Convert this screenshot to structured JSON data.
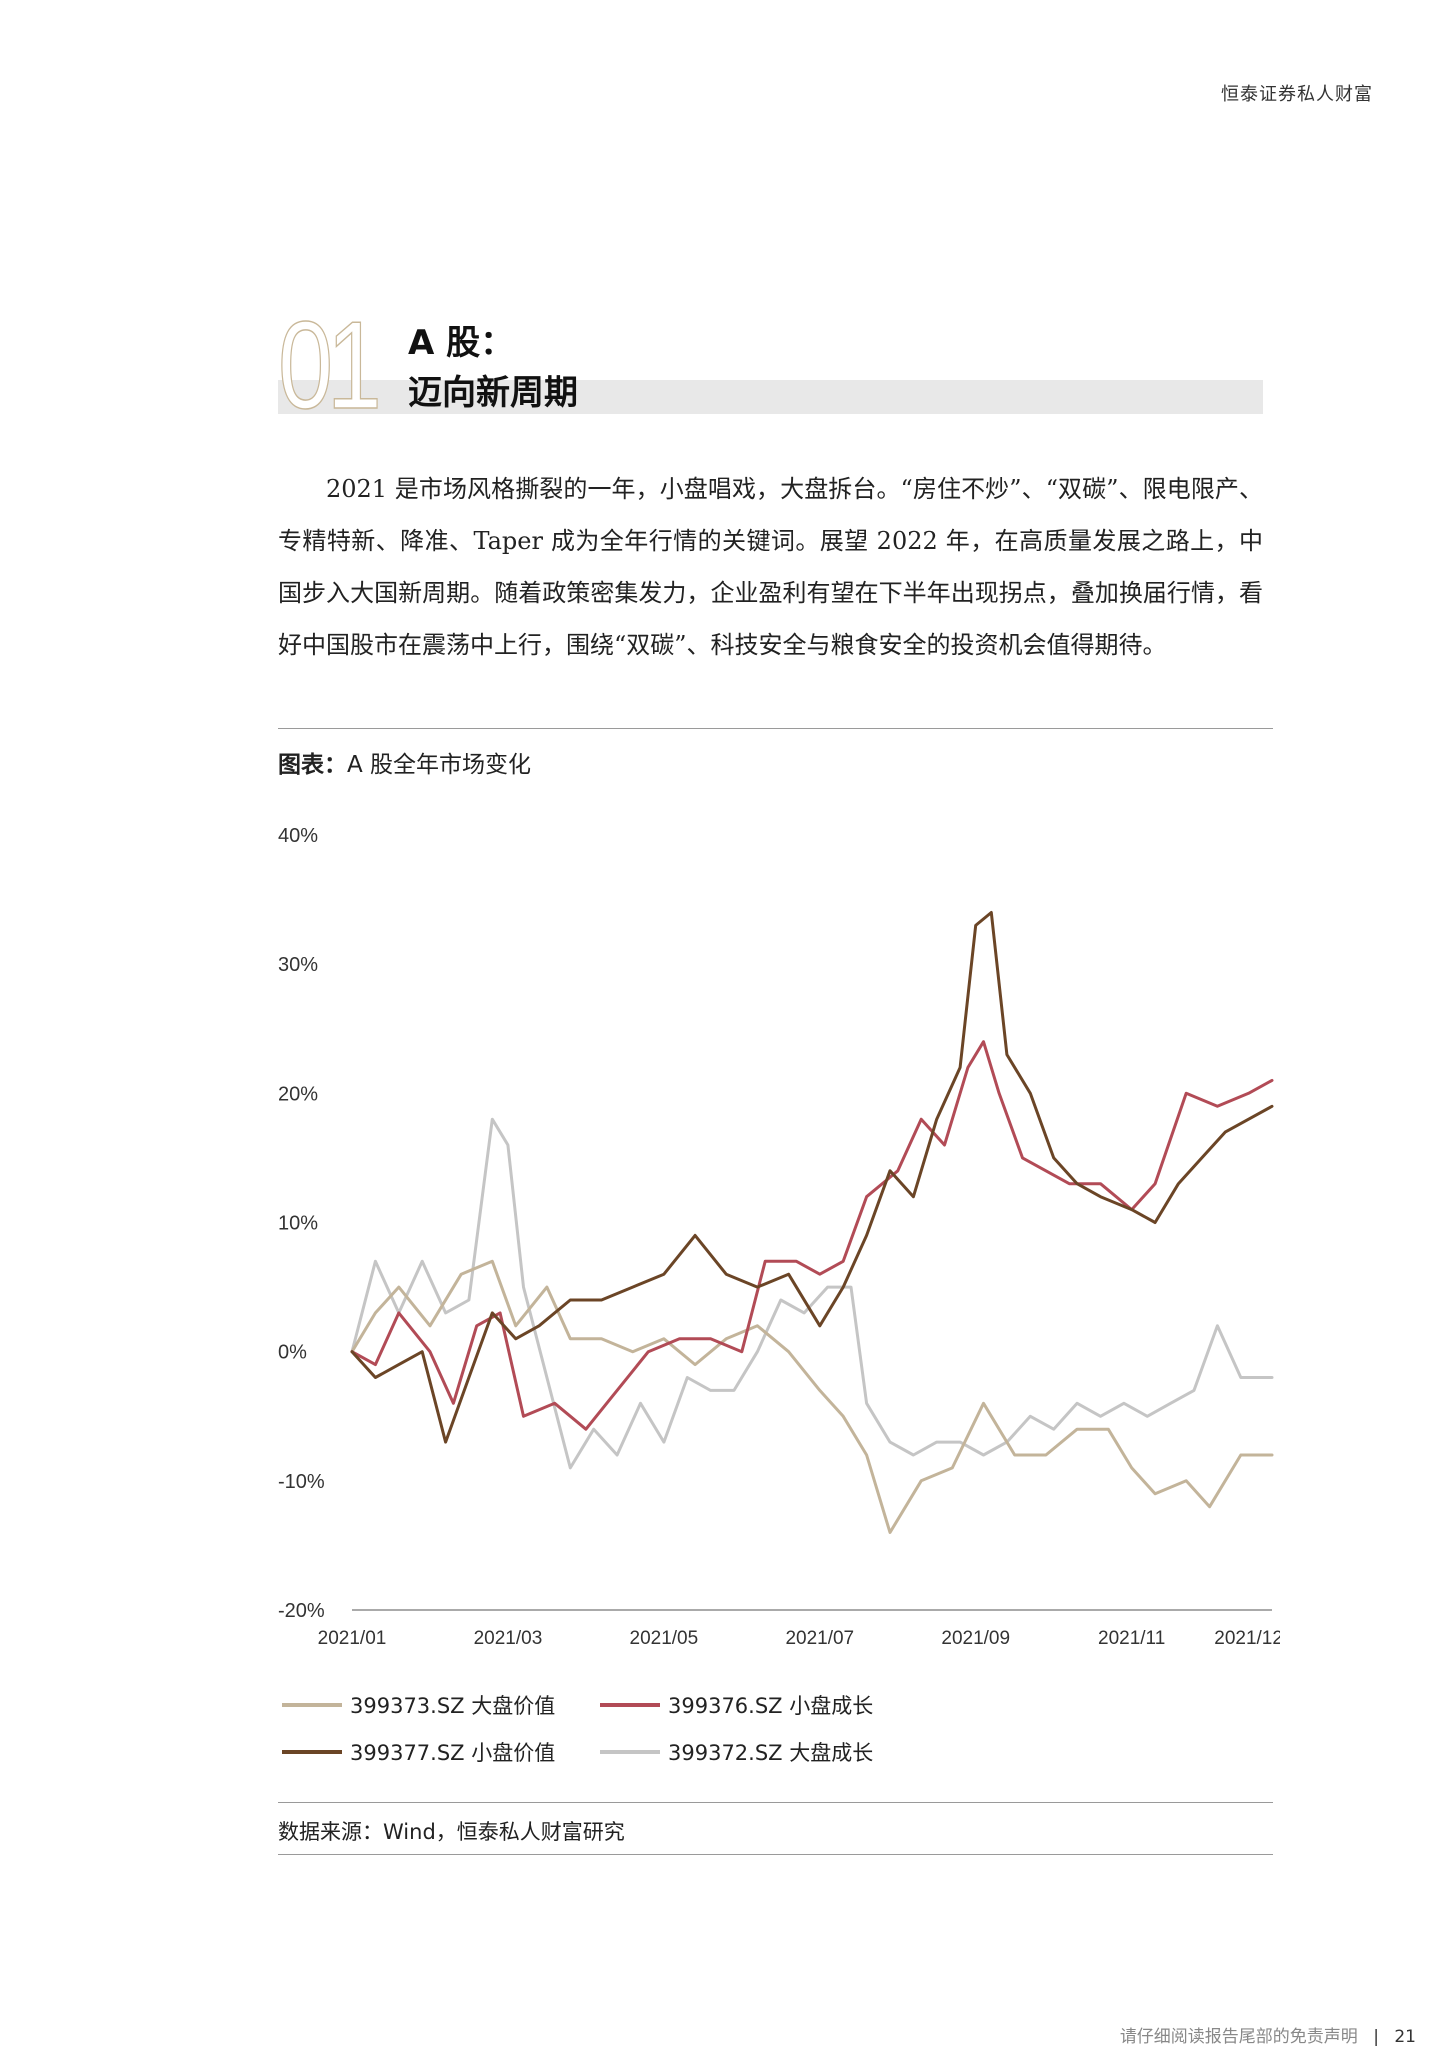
{
  "brand": "恒泰证券私人财富",
  "section": {
    "number": "01",
    "title_line1": "A 股：",
    "title_line2": "迈向新周期"
  },
  "body": "2021 是市场风格撕裂的一年，小盘唱戏，大盘拆台。“房住不炒”、“双碳”、限电限产、专精特新、降准、Taper 成为全年行情的关键词。展望 2022 年，在高质量发展之路上，中国步入大国新周期。随着政策密集发力，企业盈利有望在下半年出现拐点，叠加换届行情，看好中国股市在震荡中上行，围绕“双碳”、科技安全与粮食安全的投资机会值得期待。",
  "chart_title_label": "图表：",
  "chart_title_text": "A 股全年市场变化",
  "source": "数据来源：Wind，恒泰私人财富研究",
  "footer": {
    "disclaimer": "请仔细阅读报告尾部的免责声明",
    "page": "21"
  },
  "chart_data": {
    "type": "line",
    "ylim": [
      -20,
      40
    ],
    "yticks": [
      40,
      30,
      20,
      10,
      0,
      -10,
      -20
    ],
    "ytick_labels": [
      "40%",
      "30%",
      "20%",
      "10%",
      "0%",
      "-10%",
      "-20%"
    ],
    "xlim": [
      0,
      11.8
    ],
    "xticks": [
      0,
      2,
      4,
      6,
      8,
      10,
      11.5
    ],
    "xtick_labels": [
      "2021/01",
      "2021/03",
      "2021/05",
      "2021/07",
      "2021/09",
      "2021/11",
      "2021/12"
    ],
    "series": [
      {
        "name": "399373.SZ 大盘价值",
        "color": "#c3b49a",
        "x": [
          0,
          0.3,
          0.6,
          1.0,
          1.4,
          1.8,
          2.1,
          2.5,
          2.8,
          3.2,
          3.6,
          4.0,
          4.4,
          4.8,
          5.2,
          5.6,
          6.0,
          6.3,
          6.6,
          6.9,
          7.3,
          7.7,
          8.1,
          8.5,
          8.9,
          9.3,
          9.7,
          10.0,
          10.3,
          10.7,
          11.0,
          11.4,
          11.8
        ],
        "y": [
          0,
          3,
          5,
          2,
          6,
          7,
          2,
          5,
          1,
          1,
          0,
          1,
          -1,
          1,
          2,
          0,
          -3,
          -5,
          -8,
          -14,
          -10,
          -9,
          -4,
          -8,
          -8,
          -6,
          -6,
          -9,
          -11,
          -10,
          -12,
          -8,
          -8
        ]
      },
      {
        "name": "399376.SZ 小盘成长",
        "color": "#b24b56",
        "x": [
          0,
          0.3,
          0.6,
          1.0,
          1.3,
          1.6,
          1.9,
          2.2,
          2.6,
          3.0,
          3.4,
          3.8,
          4.2,
          4.6,
          5.0,
          5.3,
          5.7,
          6.0,
          6.3,
          6.6,
          7.0,
          7.3,
          7.6,
          7.9,
          8.1,
          8.3,
          8.6,
          8.9,
          9.2,
          9.6,
          10.0,
          10.3,
          10.7,
          11.1,
          11.5,
          11.8
        ],
        "y": [
          0,
          -1,
          3,
          0,
          -4,
          2,
          3,
          -5,
          -4,
          -6,
          -3,
          0,
          1,
          1,
          0,
          7,
          7,
          6,
          7,
          12,
          14,
          18,
          16,
          22,
          24,
          20,
          15,
          14,
          13,
          13,
          11,
          13,
          20,
          19,
          20,
          21
        ]
      },
      {
        "name": "399377.SZ 小盘价值",
        "color": "#6b4526",
        "x": [
          0,
          0.3,
          0.6,
          0.9,
          1.2,
          1.5,
          1.8,
          2.1,
          2.4,
          2.8,
          3.2,
          3.6,
          4.0,
          4.4,
          4.8,
          5.2,
          5.6,
          6.0,
          6.3,
          6.6,
          6.9,
          7.2,
          7.5,
          7.8,
          8.0,
          8.2,
          8.4,
          8.7,
          9.0,
          9.3,
          9.6,
          10.0,
          10.3,
          10.6,
          10.9,
          11.2,
          11.5,
          11.8
        ],
        "y": [
          0,
          -2,
          -1,
          0,
          -7,
          -2,
          3,
          1,
          2,
          4,
          4,
          5,
          6,
          9,
          6,
          5,
          6,
          2,
          5,
          9,
          14,
          12,
          18,
          22,
          33,
          34,
          23,
          20,
          15,
          13,
          12,
          11,
          10,
          13,
          15,
          17,
          18,
          19
        ]
      },
      {
        "name": "399372.SZ 大盘成长",
        "color": "#c5c5c5",
        "x": [
          0,
          0.3,
          0.6,
          0.9,
          1.2,
          1.5,
          1.8,
          2.0,
          2.2,
          2.5,
          2.8,
          3.1,
          3.4,
          3.7,
          4.0,
          4.3,
          4.6,
          4.9,
          5.2,
          5.5,
          5.8,
          6.1,
          6.4,
          6.6,
          6.9,
          7.2,
          7.5,
          7.8,
          8.1,
          8.4,
          8.7,
          9.0,
          9.3,
          9.6,
          9.9,
          10.2,
          10.5,
          10.8,
          11.1,
          11.4,
          11.8
        ],
        "y": [
          0,
          7,
          3,
          7,
          3,
          4,
          18,
          16,
          5,
          -2,
          -9,
          -6,
          -8,
          -4,
          -7,
          -2,
          -3,
          -3,
          0,
          4,
          3,
          5,
          5,
          -4,
          -7,
          -8,
          -7,
          -7,
          -8,
          -7,
          -5,
          -6,
          -4,
          -5,
          -4,
          -5,
          -4,
          -3,
          2,
          -2,
          -2
        ]
      }
    ]
  }
}
